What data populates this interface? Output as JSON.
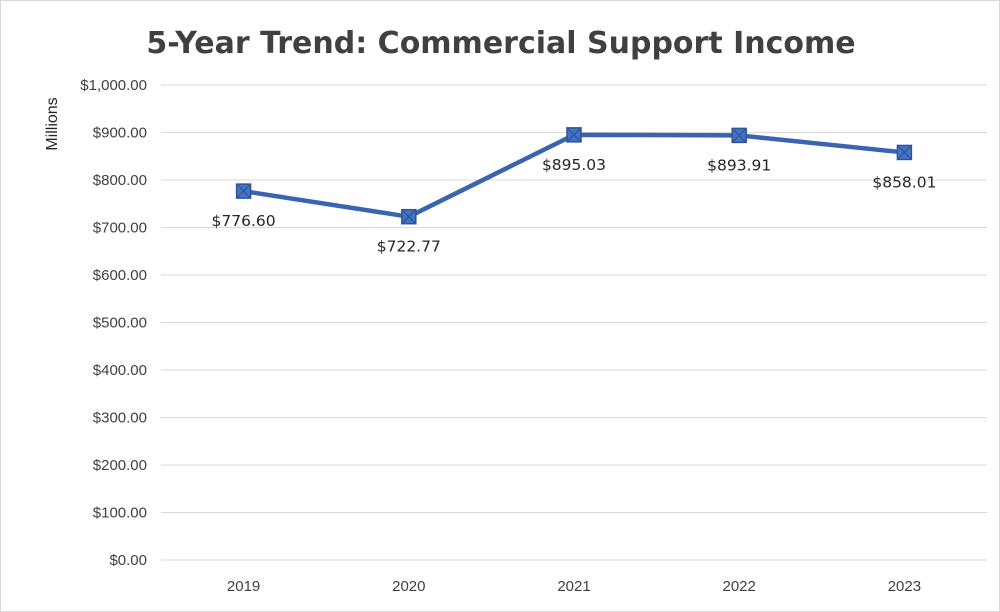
{
  "chart_data": {
    "type": "line",
    "title": "5-Year Trend: Commercial Support Income",
    "xlabel": "",
    "ylabel": "Millions",
    "categories": [
      "2019",
      "2020",
      "2021",
      "2022",
      "2023"
    ],
    "series": [
      {
        "values": [
          776.6,
          722.77,
          895.03,
          893.91,
          858.01
        ],
        "labels": [
          "$776.60",
          "$722.77",
          "$895.03",
          "$893.91",
          "$858.01"
        ],
        "color": "#3a64b0",
        "marker": "square"
      }
    ],
    "ylim": [
      0,
      1000
    ],
    "yticks": [
      0,
      100,
      200,
      300,
      400,
      500,
      600,
      700,
      800,
      900,
      1000
    ],
    "ytick_labels": [
      "$0.00",
      "$100.00",
      "$200.00",
      "$300.00",
      "$400.00",
      "$500.00",
      "$600.00",
      "$700.00",
      "$800.00",
      "$900.00",
      "$1,000.00"
    ],
    "grid": true,
    "legend": "none"
  }
}
